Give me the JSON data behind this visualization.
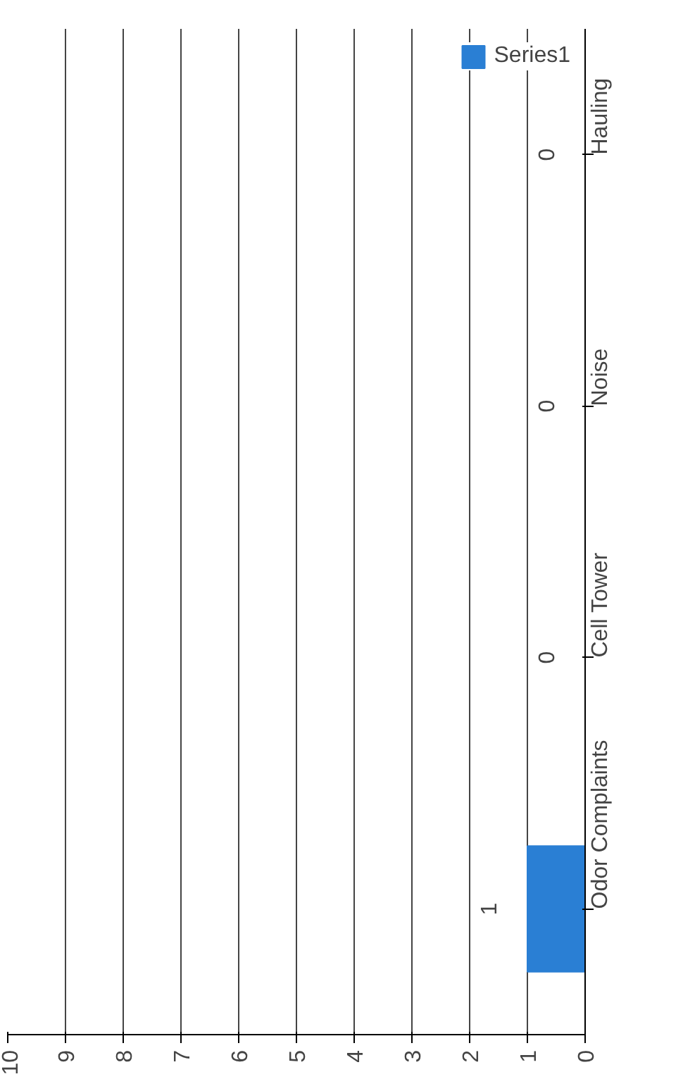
{
  "chart_data": {
    "type": "bar",
    "orientation": "horizontal",
    "categories": [
      "Hauling",
      "Noise",
      "Cell Tower",
      "Odor Complaints"
    ],
    "series": [
      {
        "name": "Series1",
        "color": "#2a7fd4",
        "values": [
          0,
          0,
          0,
          1
        ]
      }
    ],
    "xlim": [
      10,
      0
    ],
    "xticks": [
      0,
      1,
      2,
      3,
      4,
      5,
      6,
      7,
      8,
      9,
      10
    ],
    "grid": "x",
    "legend": "top right",
    "data_labels": true
  }
}
